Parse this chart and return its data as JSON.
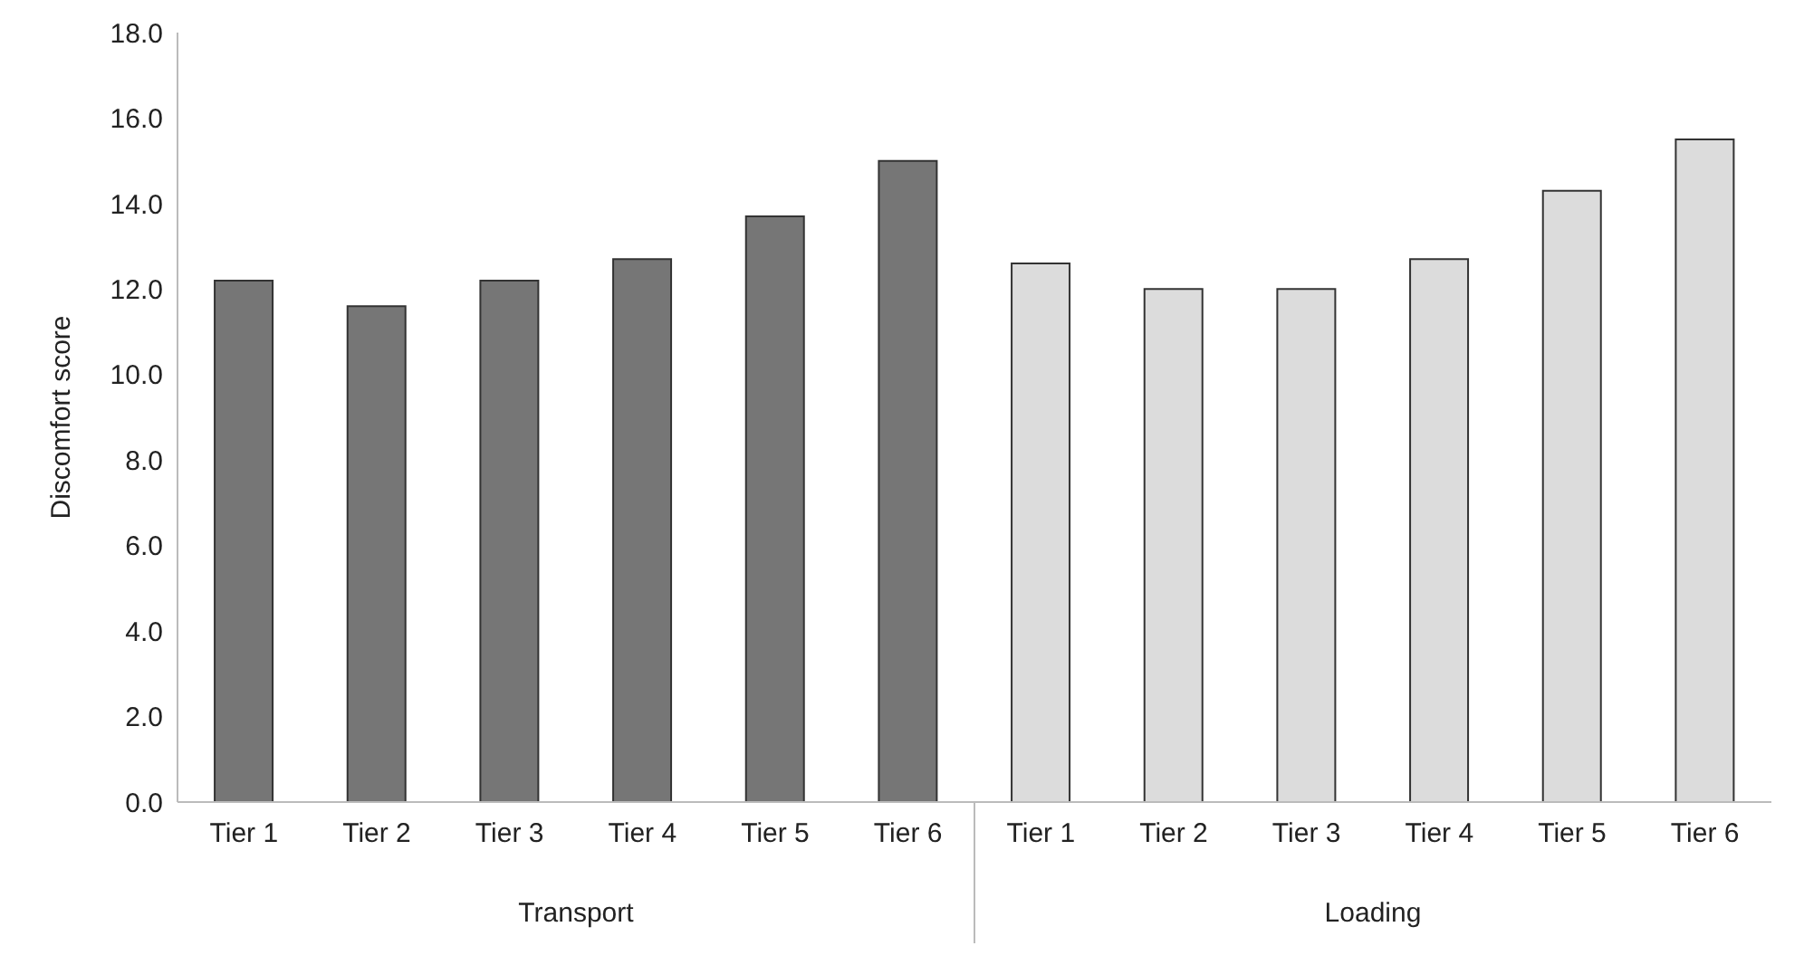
{
  "chart_data": {
    "type": "bar",
    "ylabel": "Discomfort score",
    "categories": [
      "Tier 1",
      "Tier 2",
      "Tier 3",
      "Tier 4",
      "Tier 5",
      "Tier 6",
      "Tier 1",
      "Tier 2",
      "Tier 3",
      "Tier 4",
      "Tier 5",
      "Tier 6"
    ],
    "series": [
      {
        "color": "#767676",
        "values": [
          12.2,
          11.6,
          12.2,
          12.7,
          13.7,
          15.0,
          null,
          null,
          null,
          null,
          null,
          null
        ]
      },
      {
        "color": "#dcdcdc",
        "values": [
          null,
          null,
          null,
          null,
          null,
          null,
          12.6,
          12.0,
          12.0,
          12.7,
          14.3,
          15.5
        ]
      }
    ],
    "ylim": [
      0,
      18
    ],
    "yticks": [
      {
        "value": 0,
        "label": "0.0"
      },
      {
        "value": 2,
        "label": "2.0"
      },
      {
        "value": 4,
        "label": "4.0"
      },
      {
        "value": 6,
        "label": "6.0"
      },
      {
        "value": 8,
        "label": "8.0"
      },
      {
        "value": 10,
        "label": "10.0"
      },
      {
        "value": 12,
        "label": "12.0"
      },
      {
        "value": 14,
        "label": "14.0"
      },
      {
        "value": 16,
        "label": "16.0"
      },
      {
        "value": 18,
        "label": "18.0"
      }
    ],
    "annotations": [
      "Transport",
      "Loading"
    ],
    "grid": false,
    "legend": false
  }
}
